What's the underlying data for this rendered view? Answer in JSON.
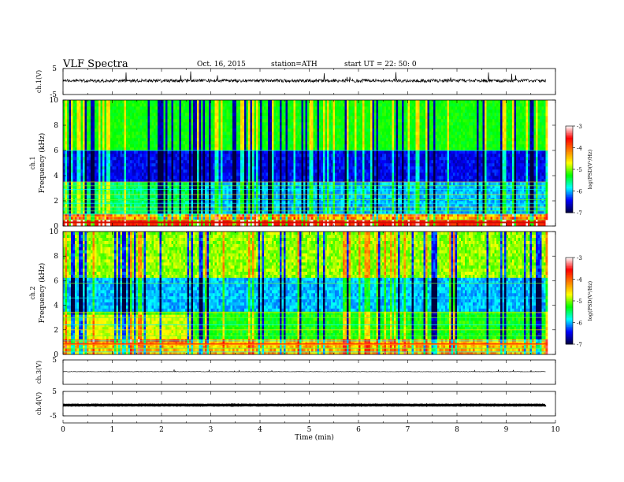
{
  "header": {
    "title": "VLF  Spectra",
    "date": "Oct. 16, 2015",
    "station": "station=ATH",
    "start": "start  UT  =    22: 50: 0"
  },
  "chart_data": [
    {
      "type": "line",
      "panel": "ch1-waveform",
      "ylabel": "ch.1(V)",
      "ylim": [
        -5,
        5
      ],
      "y_ticklabels": [
        "5",
        "-5"
      ],
      "baseline": 0.3,
      "x_range_min": [
        0,
        9.8
      ]
    },
    {
      "type": "heatmap",
      "panel": "ch1-spectrogram",
      "ylabel": "ch.1\nFrequency (kHz)",
      "ylim": [
        0,
        10
      ],
      "y_ticklabels": [
        "0",
        "2",
        "4",
        "6",
        "8",
        "10"
      ],
      "x_range_min": [
        0,
        9.8
      ],
      "colorbar": {
        "label": "log(PSD(V²/Hz)",
        "range": [
          -7,
          -3
        ],
        "ticklabels": [
          "-3",
          "-4",
          "-5",
          "-6",
          "-7"
        ],
        "colors": [
          "#000040",
          "#0000ff",
          "#00ffff",
          "#00ff00",
          "#ffff00",
          "#ff8000",
          "#ff0000",
          "#ffffff"
        ]
      }
    },
    {
      "type": "heatmap",
      "panel": "ch2-spectrogram",
      "ylabel": "ch.2\nFrequency (kHz)",
      "ylim": [
        0,
        10
      ],
      "y_ticklabels": [
        "0",
        "2",
        "4",
        "6",
        "8",
        "10"
      ],
      "x_range_min": [
        0,
        9.8
      ],
      "colorbar": {
        "label": "log(PSD(V²/Hz)",
        "range": [
          -7,
          -3
        ],
        "ticklabels": [
          "-3",
          "-4",
          "-5",
          "-6",
          "-7"
        ],
        "colors": [
          "#000040",
          "#0000ff",
          "#00ffff",
          "#00ff00",
          "#ffff00",
          "#ff8000",
          "#ff0000",
          "#ffffff"
        ]
      }
    },
    {
      "type": "line",
      "panel": "ch3-waveform",
      "ylabel": "ch.3(V)",
      "ylim": [
        -5,
        5
      ],
      "y_ticklabels": [
        "5"
      ],
      "baseline": 0.2,
      "x_range_min": [
        0,
        9.8
      ]
    },
    {
      "type": "line",
      "panel": "ch4-waveform",
      "ylabel": "ch.4(V)",
      "ylim": [
        -5,
        5
      ],
      "y_ticklabels": [
        "5",
        "-5"
      ],
      "baseline": -0.6,
      "x_range_min": [
        0,
        9.8
      ]
    }
  ],
  "x_axis": {
    "label": "Time  (min)",
    "range": [
      0,
      10
    ],
    "ticklabels": [
      "0",
      "1",
      "2",
      "3",
      "4",
      "5",
      "6",
      "7",
      "8",
      "9",
      "10"
    ]
  }
}
